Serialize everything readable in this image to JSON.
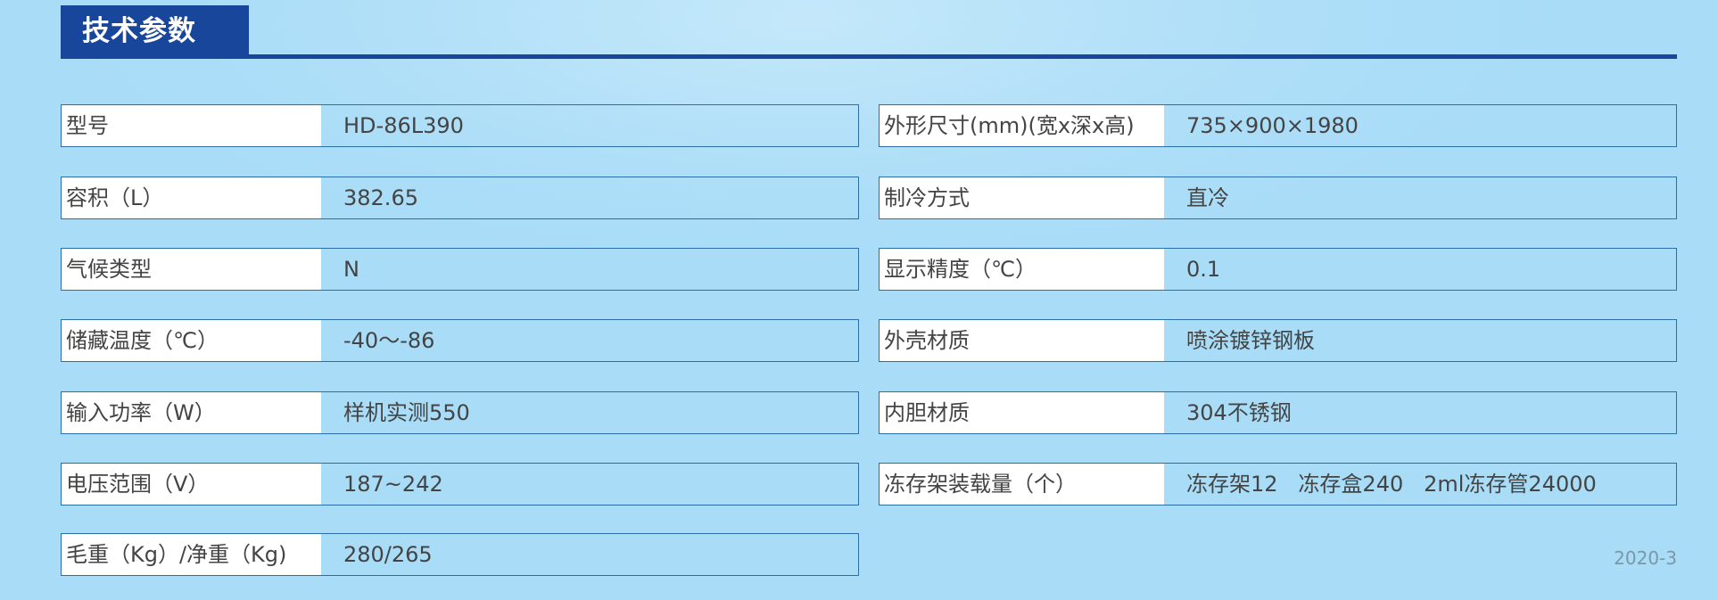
{
  "header": {
    "title": "技术参数"
  },
  "left": [
    {
      "label": "型号",
      "value": "HD-86L390"
    },
    {
      "label": "容积（L）",
      "value": "382.65"
    },
    {
      "label": "气候类型",
      "value": "N"
    },
    {
      "label": "储藏温度（℃）",
      "value": "-40～-86"
    },
    {
      "label": "输入功率（W）",
      "value": "样机实测550"
    },
    {
      "label": "电压范围（V）",
      "value": "187~242"
    },
    {
      "label": "毛重（Kg）/净重（Kg)",
      "value": "280/265"
    }
  ],
  "right": [
    {
      "label": "外形尺寸(mm)(宽x深x高)",
      "value": "735×900×1980"
    },
    {
      "label": "制冷方式",
      "value": "直冷"
    },
    {
      "label": "显示精度（℃）",
      "value": "0.1"
    },
    {
      "label": "外壳材质",
      "value": "喷涂镀锌钢板"
    },
    {
      "label": "内胆材质",
      "value": "304不锈钢"
    },
    {
      "label": "冻存架装载量（个）",
      "value": "冻存架12   冻存盒240   2ml冻存管24000"
    }
  ],
  "footer": {
    "date": "2020-3"
  },
  "colors": {
    "accent": "#17469b",
    "background": "#a8dcf7",
    "border": "#2a6fa8"
  }
}
